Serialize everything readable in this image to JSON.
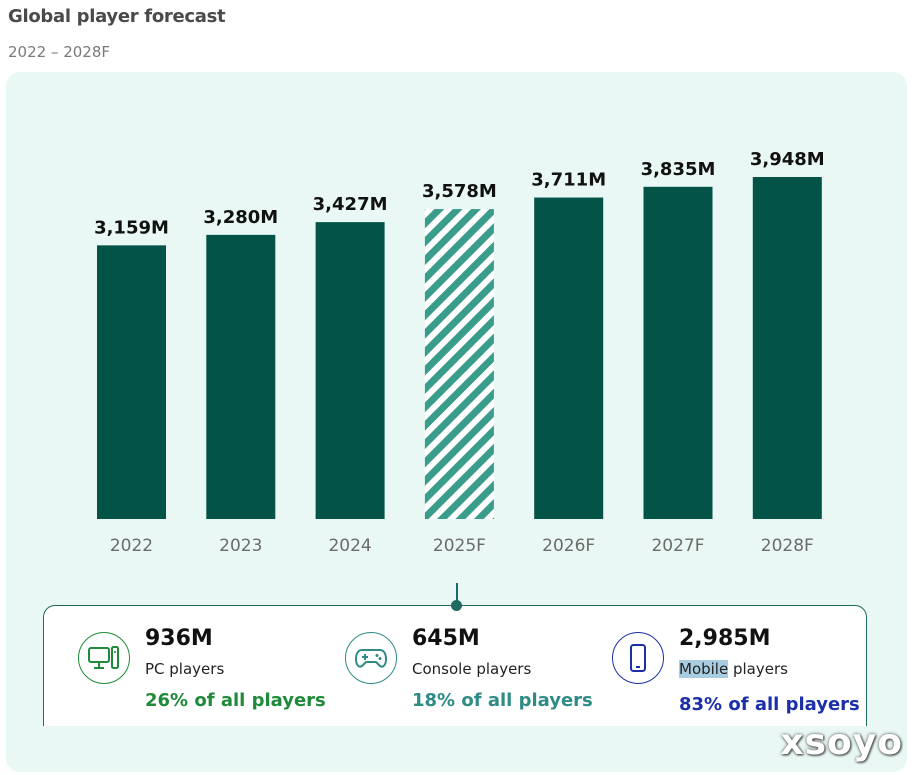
{
  "header": {
    "title": "Global player forecast",
    "subtitle": "2022 – 2028F"
  },
  "chart_data": {
    "type": "bar",
    "categories": [
      "2022",
      "2023",
      "2024",
      "2025F",
      "2026F",
      "2027F",
      "2028F"
    ],
    "values": [
      3159,
      3280,
      3427,
      3578,
      3711,
      3835,
      3948
    ],
    "value_labels": [
      "3,159M",
      "3,280M",
      "3,427M",
      "3,578M",
      "3,711M",
      "3,835M",
      "3,948M"
    ],
    "unit": "M players",
    "highlighted_category": "2025F",
    "highlight_style": "hatched",
    "colors": {
      "bar": "#045347",
      "hatch": "#3a9d8c",
      "panel": "#e9f8f4"
    },
    "grid": false,
    "legend": "none"
  },
  "stats": [
    {
      "value": "936M",
      "label_main": "PC players",
      "label_highlight": "",
      "share": "26% of all players",
      "icon": "pc-icon",
      "color": "#1f8a3a"
    },
    {
      "value": "645M",
      "label_main": "Console players",
      "label_highlight": "",
      "share": "18% of all players",
      "icon": "gamepad-icon",
      "color": "#2e8b86"
    },
    {
      "value": "2,985M",
      "label_highlight": "Mobile",
      "label_main": " players",
      "share": "83% of all players",
      "icon": "smartphone-icon",
      "color": "#1b2fa8"
    }
  ],
  "watermark": "xsoyo"
}
